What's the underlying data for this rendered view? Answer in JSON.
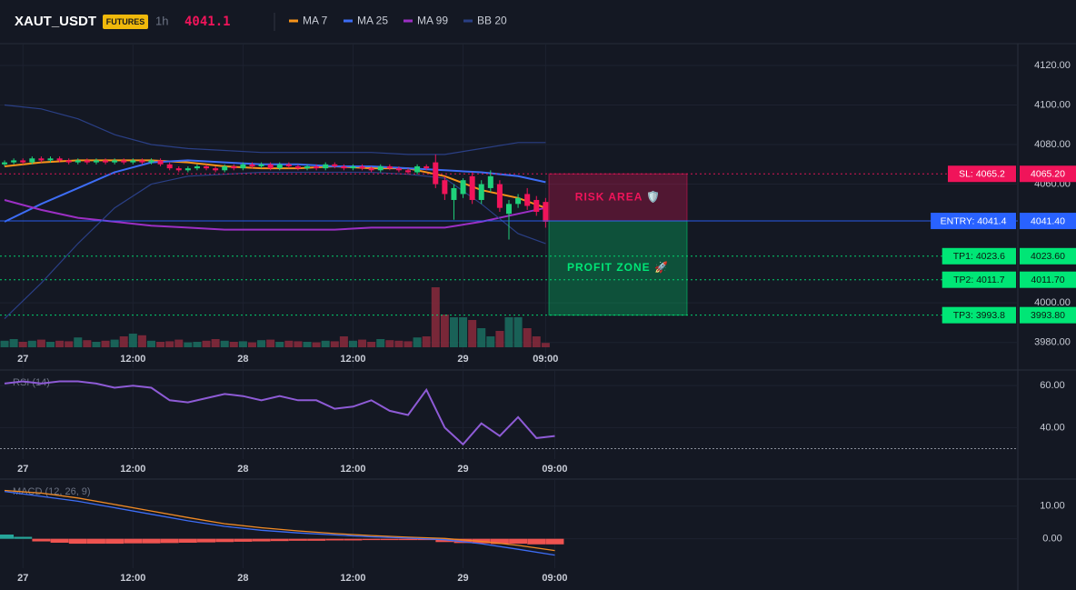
{
  "header": {
    "symbol": "XAUT_USDT",
    "badge": "FUTURES",
    "interval": "1h",
    "price": 4041.1
  },
  "chart_data": [
    {
      "type": "candlestick",
      "grid": true,
      "xlim": [
        -0.5,
        110.5
      ],
      "xticks": [
        {
          "value": 2,
          "label": "27"
        },
        {
          "value": 14,
          "label": "12:00"
        },
        {
          "value": 26,
          "label": "28"
        },
        {
          "value": 38,
          "label": "12:00"
        },
        {
          "value": 50,
          "label": "29"
        },
        {
          "value": 59,
          "label": "09:00"
        }
      ],
      "ylim": [
        3967,
        4131
      ],
      "yticks": [
        {
          "value": 4120,
          "label": "4120.00"
        },
        {
          "value": 4100,
          "label": "4100.00"
        },
        {
          "value": 4080,
          "label": "4080.00"
        },
        {
          "value": 4060,
          "label": "4060.00"
        },
        {
          "value": 4000,
          "label": "4000.00"
        },
        {
          "value": 3980,
          "label": "3980.00"
        }
      ],
      "up_color": "#1fd17a",
      "down_color": "#f0145a",
      "candles": {
        "open": [
          4070,
          4071,
          4072,
          4071,
          4073,
          4072,
          4073,
          4072,
          4071,
          4072,
          4071,
          4072,
          4071,
          4072,
          4071,
          4072,
          4071,
          4072,
          4070,
          4068,
          4067,
          4068,
          4069,
          4068,
          4067,
          4069,
          4068,
          4070,
          4069,
          4070,
          4068,
          4070,
          4069,
          4068,
          4069,
          4068,
          4070,
          4069,
          4068,
          4069,
          4068,
          4067,
          4069,
          4068,
          4067,
          4066,
          4069,
          4071,
          4062,
          4052,
          4055,
          4064,
          4052,
          4058,
          4060,
          4045,
          4050,
          4055,
          4052,
          4051
        ],
        "high": [
          4072,
          4073,
          4073,
          4074,
          4074,
          4074,
          4074,
          4073,
          4073,
          4073,
          4073,
          4073,
          4073,
          4073,
          4073,
          4073,
          4073,
          4073,
          4071,
          4069,
          4069,
          4070,
          4070,
          4069,
          4070,
          4070,
          4071,
          4071,
          4071,
          4071,
          4071,
          4071,
          4070,
          4070,
          4070,
          4071,
          4071,
          4070,
          4070,
          4070,
          4069,
          4070,
          4070,
          4069,
          4068,
          4070,
          4070,
          4075,
          4064,
          4060,
          4063,
          4066,
          4062,
          4067,
          4062,
          4052,
          4055,
          4058,
          4054,
          4053
        ],
        "low": [
          4069,
          4070,
          4070,
          4070,
          4071,
          4071,
          4071,
          4070,
          4070,
          4070,
          4070,
          4070,
          4070,
          4070,
          4070,
          4070,
          4070,
          4069,
          4067,
          4066,
          4066,
          4067,
          4067,
          4066,
          4066,
          4067,
          4067,
          4068,
          4068,
          4067,
          4067,
          4068,
          4067,
          4067,
          4067,
          4067,
          4068,
          4067,
          4067,
          4067,
          4066,
          4066,
          4067,
          4066,
          4065,
          4065,
          4067,
          4058,
          4052,
          4042,
          4053,
          4050,
          4050,
          4056,
          4046,
          4032,
          4048,
          4047,
          4044,
          4038
        ],
        "close": [
          4071,
          4072,
          4071,
          4073,
          4072,
          4073,
          4072,
          4071,
          4072,
          4071,
          4072,
          4071,
          4072,
          4071,
          4072,
          4071,
          4072,
          4070,
          4068,
          4067,
          4068,
          4069,
          4068,
          4067,
          4069,
          4068,
          4070,
          4069,
          4070,
          4068,
          4070,
          4069,
          4068,
          4069,
          4068,
          4070,
          4069,
          4068,
          4069,
          4068,
          4067,
          4069,
          4068,
          4067,
          4066,
          4069,
          4068,
          4060,
          4055,
          4058,
          4062,
          4052,
          4060,
          4064,
          4048,
          4050,
          4053,
          4049,
          4046,
          4041
        ]
      },
      "volume": {
        "ylim": [
          0,
          400
        ],
        "values": [
          12,
          15,
          10,
          12,
          14,
          10,
          12,
          11,
          18,
          13,
          10,
          12,
          14,
          20,
          25,
          22,
          12,
          10,
          11,
          14,
          9,
          10,
          12,
          15,
          12,
          10,
          11,
          9,
          13,
          14,
          10,
          12,
          11,
          10,
          9,
          12,
          11,
          20,
          12,
          14,
          10,
          15,
          13,
          12,
          11,
          18,
          20,
          110,
          60,
          55,
          55,
          50,
          35,
          20,
          30,
          55,
          55,
          35,
          20,
          8
        ]
      },
      "series": [
        {
          "name": "MA 7",
          "color": "#f7931a",
          "x": [
            0,
            4,
            8,
            12,
            16,
            20,
            24,
            28,
            32,
            36,
            40,
            44,
            48,
            52,
            56,
            59
          ],
          "values": [
            4069,
            4071,
            4072,
            4072,
            4072,
            4071,
            4069,
            4068,
            4068,
            4069,
            4068,
            4068,
            4064,
            4057,
            4053,
            4048
          ]
        },
        {
          "name": "MA 25",
          "color": "#3d6df5",
          "x": [
            0,
            4,
            8,
            12,
            16,
            20,
            24,
            28,
            32,
            36,
            40,
            44,
            48,
            52,
            56,
            59
          ],
          "values": [
            4041,
            4050,
            4058,
            4066,
            4071,
            4072,
            4071,
            4070,
            4070,
            4069,
            4069,
            4068,
            4067,
            4066,
            4064,
            4061
          ]
        },
        {
          "name": "MA 99",
          "color": "#9c2fc4",
          "x": [
            0,
            4,
            8,
            12,
            16,
            20,
            24,
            28,
            32,
            36,
            40,
            44,
            48,
            52,
            56,
            59
          ],
          "values": [
            4052,
            4047,
            4043,
            4041,
            4039,
            4038,
            4037,
            4037,
            4037,
            4037,
            4038,
            4038,
            4038,
            4041,
            4045,
            4048
          ]
        },
        {
          "name": "BB 20",
          "color": "#2a3f85",
          "x": [
            0,
            4,
            8,
            12,
            16,
            20,
            24,
            28,
            32,
            36,
            40,
            44,
            48,
            52,
            56,
            59
          ],
          "upper": [
            4100,
            4098,
            4093,
            4085,
            4080,
            4078,
            4077,
            4076,
            4076,
            4076,
            4076,
            4075,
            4075,
            4078,
            4081,
            4081
          ],
          "lower": [
            3992,
            4010,
            4030,
            4048,
            4060,
            4064,
            4065,
            4066,
            4066,
            4066,
            4066,
            4065,
            4063,
            4050,
            4035,
            4030
          ]
        }
      ],
      "levels": [
        {
          "label": "SL: 4065.2",
          "value": 4065.2,
          "axis_label": "4065.20",
          "color": "#f0145a",
          "style": "dotted"
        },
        {
          "label": "ENTRY: 4041.4",
          "value": 4041.4,
          "axis_label": "4041.40",
          "color": "#2962ff",
          "style": "solid"
        },
        {
          "label": "TP1: 4023.6",
          "value": 4023.6,
          "axis_label": "4023.60",
          "color": "#00e676",
          "style": "dotted"
        },
        {
          "label": "TP2: 4011.7",
          "value": 4011.7,
          "axis_label": "4011.70",
          "color": "#00e676",
          "style": "dotted"
        },
        {
          "label": "TP3: 3993.8",
          "value": 3993.8,
          "axis_label": "3993.80",
          "color": "#00e676",
          "style": "dotted"
        }
      ],
      "zones": [
        {
          "label": "RISK AREA 🛡️",
          "color": "#f0145a"
        },
        {
          "label": "PROFIT ZONE 🚀",
          "color": "#00e676"
        }
      ]
    },
    {
      "type": "line",
      "title": "RSI (14)",
      "grid": true,
      "xlim": [
        -0.5,
        110.5
      ],
      "xticks": [
        {
          "value": 2,
          "label": "27"
        },
        {
          "value": 14,
          "label": "12:00"
        },
        {
          "value": 26,
          "label": "28"
        },
        {
          "value": 38,
          "label": "12:00"
        },
        {
          "value": 50,
          "label": "29"
        },
        {
          "value": 60,
          "label": "09:00"
        }
      ],
      "ylim": [
        25,
        67
      ],
      "yticks": [
        {
          "value": 60,
          "label": "60.00"
        },
        {
          "value": 40,
          "label": "40.00"
        }
      ],
      "hlines": [
        30
      ],
      "series": [
        {
          "color": "#8e5bd6",
          "x": [
            0,
            2,
            4,
            6,
            8,
            10,
            12,
            14,
            16,
            18,
            20,
            22,
            24,
            26,
            28,
            30,
            32,
            34,
            36,
            38,
            40,
            42,
            44,
            46,
            48,
            50,
            52,
            54,
            56,
            58,
            60
          ],
          "values": [
            61,
            62,
            61,
            62,
            62,
            61,
            59,
            60,
            59,
            53,
            52,
            54,
            56,
            55,
            53,
            55,
            53,
            53,
            49,
            50,
            53,
            48,
            46,
            58,
            40,
            32,
            42,
            36,
            45,
            35,
            36
          ]
        }
      ]
    },
    {
      "type": "line",
      "title": "MACD (12, 26, 9)",
      "grid": true,
      "xlim": [
        -0.5,
        110.5
      ],
      "xticks": [
        {
          "value": 2,
          "label": "27"
        },
        {
          "value": 14,
          "label": "12:00"
        },
        {
          "value": 26,
          "label": "28"
        },
        {
          "value": 38,
          "label": "12:00"
        },
        {
          "value": 50,
          "label": "29"
        },
        {
          "value": 60,
          "label": "09:00"
        }
      ],
      "ylim": [
        -9,
        18
      ],
      "yticks": [
        {
          "value": 10,
          "label": "10.00"
        },
        {
          "value": 0,
          "label": "0.00"
        }
      ],
      "series": [
        {
          "color": "#f08a24",
          "x": [
            0,
            4,
            8,
            12,
            16,
            20,
            24,
            28,
            32,
            36,
            40,
            44,
            48,
            52,
            56,
            60
          ],
          "values": [
            14.8,
            14,
            12.5,
            10.5,
            8.5,
            6.5,
            4.6,
            3.4,
            2.4,
            1.6,
            1,
            0.5,
            0.1,
            -0.8,
            -2,
            -3.6
          ]
        },
        {
          "color": "#3d6df5",
          "x": [
            0,
            4,
            8,
            12,
            16,
            20,
            24,
            28,
            32,
            36,
            40,
            44,
            48,
            52,
            56,
            60
          ],
          "values": [
            14.5,
            13,
            11.5,
            9.5,
            7.5,
            5.5,
            3.8,
            2.6,
            1.8,
            1.2,
            0.6,
            0.2,
            -0.3,
            -1.5,
            -3.2,
            -5
          ]
        }
      ],
      "histogram": {
        "up_color": "#26a69a",
        "down_color": "#ef5350",
        "x": [
          0,
          2,
          4,
          6,
          8,
          10,
          12,
          14,
          16,
          18,
          20,
          22,
          24,
          26,
          28,
          30,
          32,
          34,
          36,
          38,
          40,
          42,
          44,
          46,
          48,
          50,
          52,
          54,
          56,
          58,
          60
        ],
        "values": [
          1.3,
          0.6,
          -0.8,
          -1.2,
          -1.5,
          -1.5,
          -1.5,
          -1.4,
          -1.4,
          -1.3,
          -1.2,
          -1.1,
          -1,
          -0.9,
          -0.8,
          -0.7,
          -0.6,
          -0.6,
          -0.5,
          -0.5,
          -0.4,
          -0.4,
          -0.4,
          -0.4,
          -1,
          -1.3,
          -1.4,
          -1.6,
          -1.5,
          -1.7,
          -1.7
        ]
      }
    }
  ]
}
